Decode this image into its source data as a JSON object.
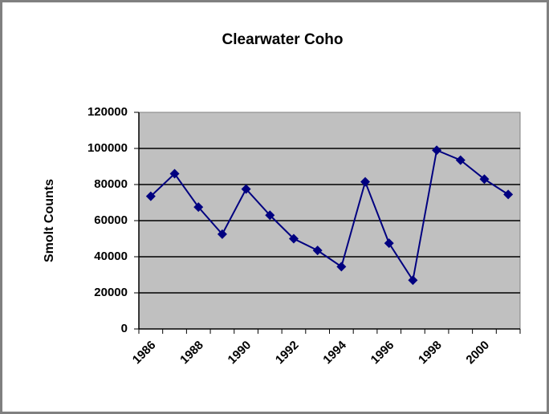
{
  "chart_data": {
    "type": "line",
    "title": "Clearwater Coho",
    "y_label": "Smolt Counts",
    "categories": [
      1986,
      null,
      1988,
      null,
      1990,
      null,
      1992,
      null,
      1994,
      null,
      1996,
      null,
      1998,
      null,
      2000,
      null
    ],
    "series": [
      {
        "name": "Smolt Counts",
        "color": "#000080",
        "values": [
          73500,
          86000,
          67500,
          52500,
          77500,
          63000,
          50000,
          43500,
          34500,
          81500,
          47500,
          27000,
          99000,
          93500,
          83000,
          74500
        ]
      }
    ],
    "ylim": [
      0,
      120000
    ],
    "yticks": [
      0,
      20000,
      40000,
      60000,
      80000,
      100000,
      120000
    ],
    "grid": true
  }
}
